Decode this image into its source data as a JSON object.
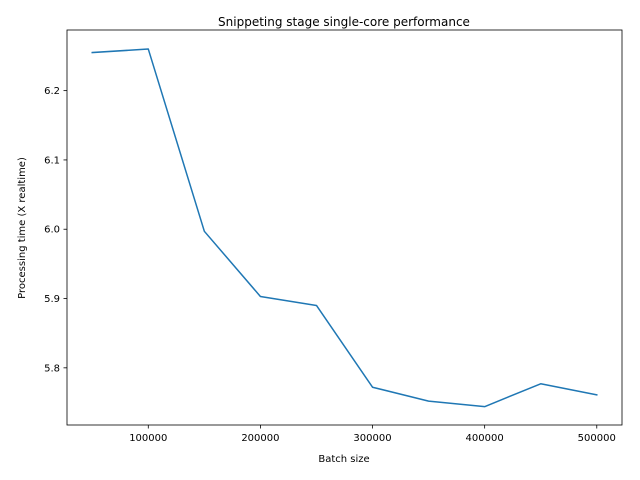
{
  "chart_data": {
    "type": "line",
    "title": "Snippeting stage single-core performance",
    "xlabel": "Batch size",
    "ylabel": "Processing time (X realtime)",
    "xlim": [
      27500,
      522500
    ],
    "ylim": [
      5.7175,
      6.2875
    ],
    "grid": false,
    "xticks": [
      100000,
      200000,
      300000,
      400000,
      500000
    ],
    "xtick_labels": [
      "100000",
      "200000",
      "300000",
      "400000",
      "500000"
    ],
    "yticks": [
      5.8,
      5.9,
      6.0,
      6.1,
      6.2
    ],
    "ytick_labels": [
      "5.8",
      "5.9",
      "6.0",
      "6.1",
      "6.2"
    ],
    "series": [
      {
        "color": "#1f77b4",
        "x": [
          50000,
          100000,
          150000,
          200000,
          250000,
          300000,
          350000,
          400000,
          450000,
          500000
        ],
        "y": [
          6.255,
          6.26,
          5.997,
          5.903,
          5.89,
          5.772,
          5.752,
          5.744,
          5.777,
          5.761
        ]
      }
    ]
  }
}
